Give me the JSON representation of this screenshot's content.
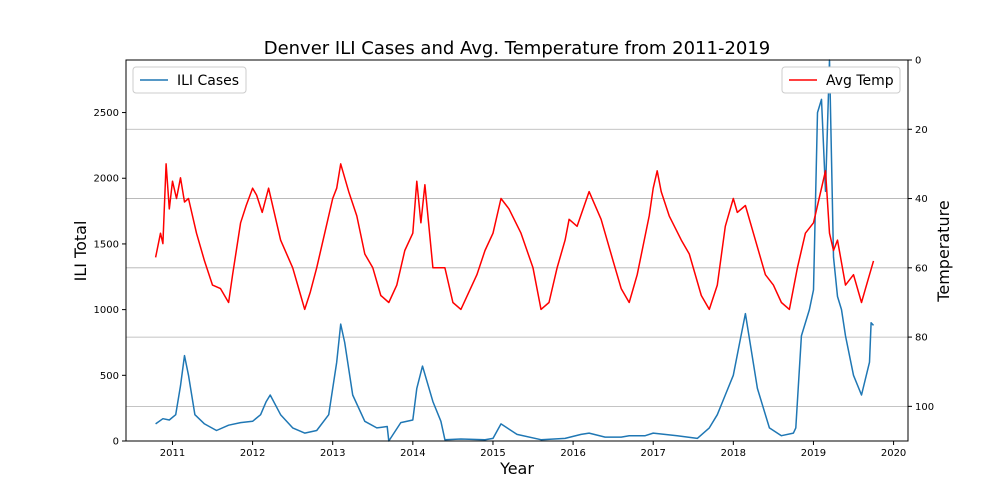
{
  "chart_data": {
    "type": "line",
    "title": "Denver ILI Cases and Avg. Temperature from 2011-2019",
    "xlabel": "Year",
    "ylabel": "ILI Total",
    "y2label": "Temperature",
    "x_ticks": [
      "2011",
      "2012",
      "2013",
      "2014",
      "2015",
      "2016",
      "2017",
      "2018",
      "2019",
      "2020"
    ],
    "xlim": [
      2010.42,
      2020.18
    ],
    "ylim": [
      0,
      2900
    ],
    "y_ticks": [
      0,
      500,
      1000,
      1500,
      2000,
      2500
    ],
    "y2lim": [
      0,
      110
    ],
    "y2_inverted": true,
    "y2_ticks": [
      0,
      20,
      40,
      60,
      80,
      100
    ],
    "grid": "right axis horizontal",
    "series": [
      {
        "name": "ILI Cases",
        "axis": "left",
        "color": "#1f77b4",
        "legend": "top-left",
        "x": [
          2010.79,
          2010.88,
          2010.96,
          2011.04,
          2011.1,
          2011.15,
          2011.2,
          2011.28,
          2011.4,
          2011.55,
          2011.7,
          2011.85,
          2012.0,
          2012.1,
          2012.17,
          2012.22,
          2012.35,
          2012.5,
          2012.65,
          2012.8,
          2012.95,
          2013.05,
          2013.1,
          2013.15,
          2013.25,
          2013.4,
          2013.55,
          2013.68,
          2013.7,
          2013.85,
          2014.0,
          2014.05,
          2014.12,
          2014.25,
          2014.35,
          2014.4,
          2014.6,
          2014.9,
          2015.0,
          2015.1,
          2015.3,
          2015.6,
          2015.9,
          2016.1,
          2016.2,
          2016.4,
          2016.6,
          2016.7,
          2016.9,
          2017.0,
          2017.3,
          2017.55,
          2017.7,
          2017.8,
          2017.9,
          2018.0,
          2018.08,
          2018.15,
          2018.3,
          2018.45,
          2018.6,
          2018.75,
          2018.78,
          2018.85,
          2018.95,
          2019.0,
          2019.05,
          2019.1,
          2019.15,
          2019.2,
          2019.25,
          2019.3,
          2019.35,
          2019.4,
          2019.5,
          2019.6,
          2019.7,
          2019.72,
          2019.75
        ],
        "values": [
          130,
          170,
          160,
          200,
          420,
          650,
          500,
          200,
          130,
          80,
          120,
          140,
          150,
          200,
          300,
          350,
          200,
          100,
          60,
          80,
          200,
          600,
          890,
          750,
          350,
          150,
          100,
          110,
          0,
          140,
          160,
          400,
          570,
          300,
          150,
          10,
          15,
          10,
          20,
          130,
          50,
          10,
          20,
          50,
          60,
          30,
          30,
          40,
          40,
          60,
          40,
          20,
          100,
          200,
          350,
          500,
          750,
          970,
          400,
          100,
          40,
          60,
          100,
          800,
          1000,
          1150,
          2500,
          2600,
          1900,
          2900,
          1400,
          1100,
          1000,
          800,
          500,
          350,
          600,
          900,
          880
        ]
      },
      {
        "name": "Avg Temp",
        "axis": "right",
        "color": "#ff0000",
        "legend": "top-right",
        "x": [
          2010.79,
          2010.85,
          2010.88,
          2010.92,
          2010.96,
          2011.0,
          2011.05,
          2011.1,
          2011.15,
          2011.2,
          2011.3,
          2011.4,
          2011.5,
          2011.6,
          2011.7,
          2011.75,
          2011.85,
          2011.92,
          2012.0,
          2012.05,
          2012.12,
          2012.2,
          2012.35,
          2012.5,
          2012.6,
          2012.65,
          2012.72,
          2012.8,
          2012.9,
          2013.0,
          2013.05,
          2013.1,
          2013.2,
          2013.3,
          2013.4,
          2013.5,
          2013.6,
          2013.7,
          2013.8,
          2013.9,
          2014.0,
          2014.05,
          2014.1,
          2014.15,
          2014.25,
          2014.4,
          2014.5,
          2014.6,
          2014.7,
          2014.8,
          2014.9,
          2015.0,
          2015.1,
          2015.2,
          2015.35,
          2015.5,
          2015.6,
          2015.7,
          2015.8,
          2015.9,
          2015.95,
          2016.05,
          2016.2,
          2016.35,
          2016.5,
          2016.6,
          2016.7,
          2016.8,
          2016.95,
          2017.0,
          2017.05,
          2017.1,
          2017.2,
          2017.35,
          2017.45,
          2017.6,
          2017.7,
          2017.8,
          2017.9,
          2018.0,
          2018.05,
          2018.15,
          2018.25,
          2018.4,
          2018.5,
          2018.6,
          2018.7,
          2018.8,
          2018.9,
          2019.0,
          2019.1,
          2019.15,
          2019.2,
          2019.25,
          2019.3,
          2019.4,
          2019.5,
          2019.6,
          2019.65,
          2019.75
        ],
        "values": [
          57,
          50,
          53,
          30,
          43,
          35,
          40,
          34,
          41,
          40,
          50,
          58,
          65,
          66,
          70,
          62,
          47,
          42,
          37,
          39,
          44,
          37,
          52,
          60,
          68,
          72,
          67,
          60,
          50,
          40,
          37,
          30,
          38,
          45,
          56,
          60,
          68,
          70,
          65,
          55,
          50,
          35,
          47,
          36,
          60,
          60,
          70,
          72,
          67,
          62,
          55,
          50,
          40,
          43,
          50,
          60,
          72,
          70,
          60,
          52,
          46,
          48,
          38,
          46,
          58,
          66,
          70,
          62,
          45,
          37,
          32,
          38,
          45,
          52,
          56,
          68,
          72,
          65,
          48,
          40,
          44,
          42,
          50,
          62,
          65,
          70,
          72,
          60,
          50,
          47,
          37,
          32,
          50,
          55,
          52,
          65,
          62,
          70,
          66,
          58
        ]
      }
    ]
  }
}
